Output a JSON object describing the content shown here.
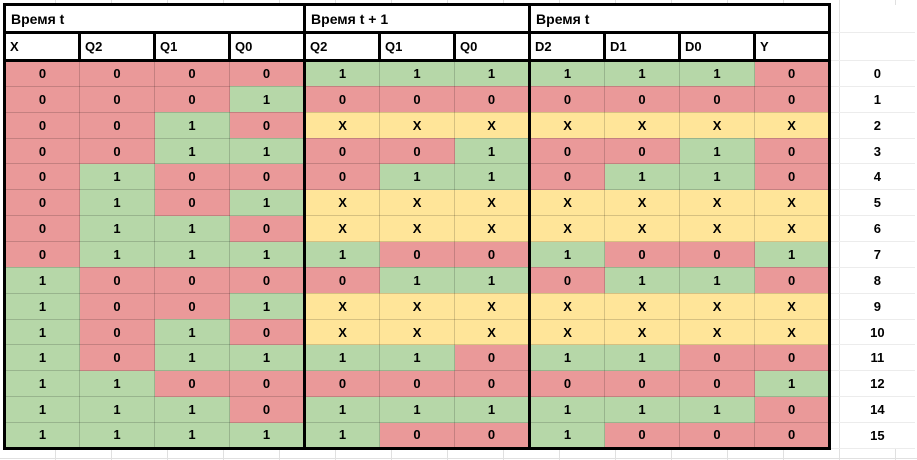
{
  "table": {
    "group_headers": [
      {
        "label": "Время t",
        "span": 4
      },
      {
        "label": "Время t + 1",
        "span": 3
      },
      {
        "label": "Время t",
        "span": 4
      }
    ],
    "column_headers": [
      "X",
      "Q2",
      "Q1",
      "Q0",
      "Q2",
      "Q1",
      "Q0",
      "D2",
      "D1",
      "D0",
      "Y"
    ],
    "cell_colors": {
      "0": "#ea9999",
      "1": "#b6d7a8",
      "X": "#ffe599"
    },
    "rows": [
      {
        "cells": [
          "0",
          "0",
          "0",
          "0",
          "1",
          "1",
          "1",
          "1",
          "1",
          "1",
          "0"
        ],
        "row_label": "0"
      },
      {
        "cells": [
          "0",
          "0",
          "0",
          "1",
          "0",
          "0",
          "0",
          "0",
          "0",
          "0",
          "0"
        ],
        "row_label": "1"
      },
      {
        "cells": [
          "0",
          "0",
          "1",
          "0",
          "X",
          "X",
          "X",
          "X",
          "X",
          "X",
          "X"
        ],
        "row_label": "2"
      },
      {
        "cells": [
          "0",
          "0",
          "1",
          "1",
          "0",
          "0",
          "1",
          "0",
          "0",
          "1",
          "0"
        ],
        "row_label": "3"
      },
      {
        "cells": [
          "0",
          "1",
          "0",
          "0",
          "0",
          "1",
          "1",
          "0",
          "1",
          "1",
          "0"
        ],
        "row_label": "4"
      },
      {
        "cells": [
          "0",
          "1",
          "0",
          "1",
          "X",
          "X",
          "X",
          "X",
          "X",
          "X",
          "X"
        ],
        "row_label": "5"
      },
      {
        "cells": [
          "0",
          "1",
          "1",
          "0",
          "X",
          "X",
          "X",
          "X",
          "X",
          "X",
          "X"
        ],
        "row_label": "6"
      },
      {
        "cells": [
          "0",
          "1",
          "1",
          "1",
          "1",
          "0",
          "0",
          "1",
          "0",
          "0",
          "1"
        ],
        "row_label": "7"
      },
      {
        "cells": [
          "1",
          "0",
          "0",
          "0",
          "0",
          "1",
          "1",
          "0",
          "1",
          "1",
          "0"
        ],
        "row_label": "8"
      },
      {
        "cells": [
          "1",
          "0",
          "0",
          "1",
          "X",
          "X",
          "X",
          "X",
          "X",
          "X",
          "X"
        ],
        "row_label": "9"
      },
      {
        "cells": [
          "1",
          "0",
          "1",
          "0",
          "X",
          "X",
          "X",
          "X",
          "X",
          "X",
          "X"
        ],
        "row_label": "10"
      },
      {
        "cells": [
          "1",
          "0",
          "1",
          "1",
          "1",
          "1",
          "0",
          "1",
          "1",
          "0",
          "0"
        ],
        "row_label": "11"
      },
      {
        "cells": [
          "1",
          "1",
          "0",
          "0",
          "0",
          "0",
          "0",
          "0",
          "0",
          "0",
          "1"
        ],
        "row_label": "12"
      },
      {
        "cells": [
          "1",
          "1",
          "1",
          "0",
          "1",
          "1",
          "1",
          "1",
          "1",
          "1",
          "0"
        ],
        "row_label": "14"
      },
      {
        "cells": [
          "1",
          "1",
          "1",
          "1",
          "1",
          "0",
          "0",
          "1",
          "0",
          "0",
          "0"
        ],
        "row_label": "15"
      }
    ]
  }
}
